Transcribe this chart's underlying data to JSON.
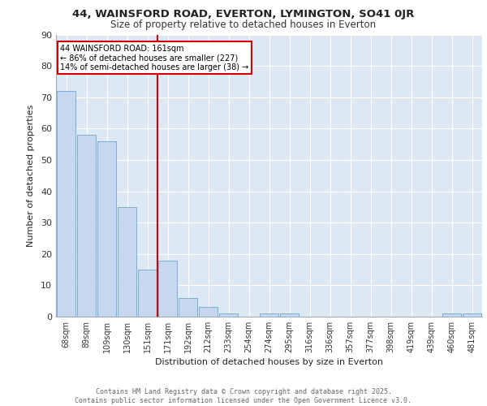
{
  "title1": "44, WAINSFORD ROAD, EVERTON, LYMINGTON, SO41 0JR",
  "title2": "Size of property relative to detached houses in Everton",
  "xlabel": "Distribution of detached houses by size in Everton",
  "ylabel": "Number of detached properties",
  "categories": [
    "68sqm",
    "89sqm",
    "109sqm",
    "130sqm",
    "151sqm",
    "171sqm",
    "192sqm",
    "212sqm",
    "233sqm",
    "254sqm",
    "274sqm",
    "295sqm",
    "316sqm",
    "336sqm",
    "357sqm",
    "377sqm",
    "398sqm",
    "419sqm",
    "439sqm",
    "460sqm",
    "481sqm"
  ],
  "values": [
    72,
    58,
    56,
    35,
    15,
    18,
    6,
    3,
    1,
    0,
    1,
    1,
    0,
    0,
    0,
    0,
    0,
    0,
    0,
    1,
    1
  ],
  "bar_color": "#c5d8ef",
  "bar_edge_color": "#7aaed6",
  "background_color": "#dde8f5",
  "grid_color": "#ffffff",
  "annotation_text": "44 WAINSFORD ROAD: 161sqm\n← 86% of detached houses are smaller (227)\n14% of semi-detached houses are larger (38) →",
  "vline_color": "#cc0000",
  "annotation_box_color": "#cc0000",
  "footer_text": "Contains HM Land Registry data © Crown copyright and database right 2025.\nContains public sector information licensed under the Open Government Licence v3.0.",
  "ylim": [
    0,
    90
  ],
  "yticks": [
    0,
    10,
    20,
    30,
    40,
    50,
    60,
    70,
    80,
    90
  ]
}
